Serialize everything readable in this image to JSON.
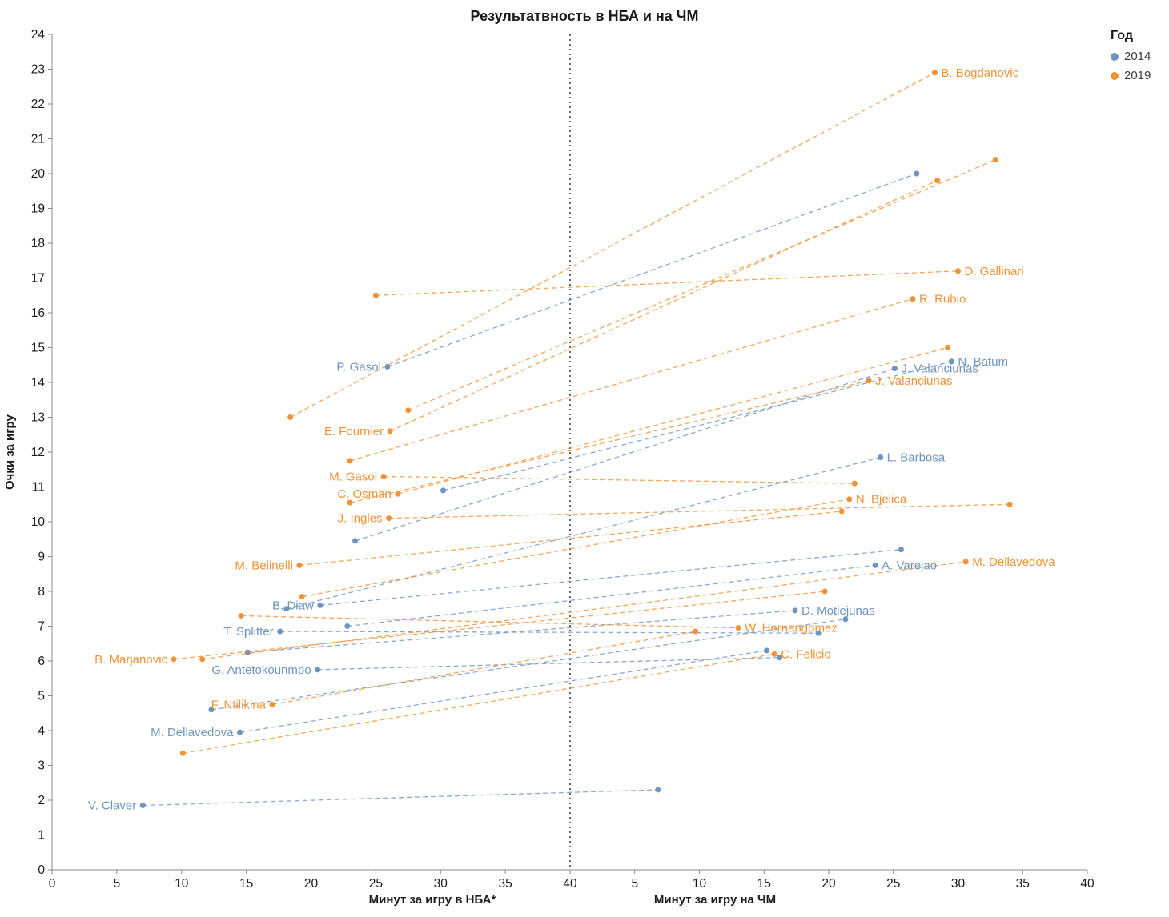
{
  "title": "Результатвность в НБА и на ЧМ",
  "legend": {
    "title": "Год",
    "items": [
      {
        "label": "2014",
        "color": "#6e94c1"
      },
      {
        "label": "2019",
        "color": "#f09235"
      }
    ]
  },
  "chart_data": {
    "type": "scatter",
    "variant": "dumbbell-slopegraph",
    "title": "Результатвность в НБА и на ЧМ",
    "ylabel": "Очки за игру",
    "xlabel_left": "Минут за игру в НБА*",
    "xlabel_right": "Минут за игру на ЧМ",
    "ylim": [
      0,
      24
    ],
    "y_ticks": [
      0,
      1,
      2,
      3,
      4,
      5,
      6,
      7,
      8,
      9,
      10,
      11,
      12,
      13,
      14,
      15,
      16,
      17,
      18,
      19,
      20,
      21,
      22,
      23,
      24
    ],
    "xlim_left": [
      0,
      40
    ],
    "xlim_right": [
      0,
      40
    ],
    "x_ticks_left": [
      0,
      5,
      10,
      15,
      20,
      25,
      30,
      35,
      40
    ],
    "x_ticks_right": [
      5,
      10,
      15,
      20,
      25,
      30,
      35,
      40
    ],
    "divider_x": 40,
    "grid": false,
    "legend_position": "top-right",
    "colors": {
      "axis": "#888888",
      "tick_text": "#1a1a1a",
      "divider": "#333333"
    },
    "series": [
      {
        "name": "2014",
        "color": "#6e94c1",
        "players": [
          {
            "name": "P. Gasol",
            "nba": [
              25.9,
              14.45
            ],
            "wc": [
              26.8,
              20.0
            ],
            "label_side": "nba"
          },
          {
            "name": "N. Batum",
            "nba": [
              30.2,
              10.9
            ],
            "wc": [
              29.5,
              14.6
            ],
            "label_side": "wc"
          },
          {
            "name": "J. Valanciunas",
            "nba": [
              23.4,
              9.45
            ],
            "wc": [
              25.1,
              14.4
            ],
            "label_side": "wc"
          },
          {
            "name": "L. Barbosa",
            "nba": [
              18.1,
              7.5
            ],
            "wc": [
              24.0,
              11.85
            ],
            "label_side": "wc"
          },
          {
            "name": "A. Varejao",
            "nba": [
              22.8,
              7.0
            ],
            "wc": [
              23.6,
              8.75
            ],
            "label_side": "wc"
          },
          {
            "name": "B. Diaw",
            "nba": [
              20.7,
              7.6
            ],
            "wc": [
              25.6,
              9.2
            ],
            "label_side": "nba"
          },
          {
            "name": "T. Splitter",
            "nba": [
              17.6,
              6.85
            ],
            "wc": [
              19.2,
              6.8
            ],
            "label_side": "nba"
          },
          {
            "name": "D. Motiejunas",
            "nba": [
              15.1,
              6.25
            ],
            "wc": [
              17.4,
              7.45
            ],
            "label_side": "wc"
          },
          {
            "name": "G. Antetokounmpo",
            "nba": [
              20.5,
              5.75
            ],
            "wc": [
              16.2,
              6.1
            ],
            "label_side": "nba"
          },
          {
            "name": "M. Dellavedova",
            "nba": [
              14.5,
              3.95
            ],
            "wc": [
              15.2,
              6.3
            ],
            "label_side": "nba"
          },
          {
            "name": "",
            "nba": [
              12.3,
              4.6
            ],
            "wc": [
              21.3,
              7.2
            ],
            "label_side": null
          },
          {
            "name": "V. Claver",
            "nba": [
              7.0,
              1.85
            ],
            "wc": [
              6.8,
              2.3
            ],
            "label_side": "nba"
          }
        ]
      },
      {
        "name": "2019",
        "color": "#f09235",
        "players": [
          {
            "name": "B. Bogdanovic",
            "nba": [
              18.4,
              13.0
            ],
            "wc": [
              28.2,
              22.9
            ],
            "label_side": "wc"
          },
          {
            "name": "D. Gallinari",
            "nba": [
              25.0,
              16.5
            ],
            "wc": [
              30.0,
              17.2
            ],
            "label_side": "wc"
          },
          {
            "name": "R. Rubio",
            "nba": [
              23.0,
              11.75
            ],
            "wc": [
              26.5,
              16.4
            ],
            "label_side": "wc"
          },
          {
            "name": "E. Fournier",
            "nba": [
              26.1,
              12.6
            ],
            "wc": [
              28.4,
              19.8
            ],
            "label_side": "nba"
          },
          {
            "name": "",
            "nba": [
              27.5,
              13.2
            ],
            "wc": [
              32.9,
              20.4
            ],
            "label_side": null
          },
          {
            "name": "J. Valanciunas",
            "nba": [
              23.0,
              10.55
            ],
            "wc": [
              23.1,
              14.05
            ],
            "label_side": "wc"
          },
          {
            "name": "C. Osman",
            "nba": [
              26.7,
              10.8
            ],
            "wc": [
              29.2,
              15.0
            ],
            "label_side": "nba"
          },
          {
            "name": "J. Ingles",
            "nba": [
              26.0,
              10.1
            ],
            "wc": [
              34.0,
              10.5
            ],
            "label_side": "nba"
          },
          {
            "name": "N. Bjelica",
            "nba": [
              19.3,
              7.85
            ],
            "wc": [
              21.6,
              10.65
            ],
            "label_side": "wc"
          },
          {
            "name": "M. Belinelli",
            "nba": [
              19.1,
              8.75
            ],
            "wc": [
              21.0,
              10.3
            ],
            "label_side": "nba"
          },
          {
            "name": "M. Dellavedova",
            "nba": [
              11.6,
              6.05
            ],
            "wc": [
              30.6,
              8.85
            ],
            "label_side": "wc"
          },
          {
            "name": "W. Hernangomez",
            "nba": [
              14.6,
              7.3
            ],
            "wc": [
              13.0,
              6.95
            ],
            "label_side": "wc"
          },
          {
            "name": "B. Marjanovic",
            "nba": [
              9.4,
              6.05
            ],
            "wc": [
              19.7,
              8.0
            ],
            "label_side": "nba"
          },
          {
            "name": "F. Ntilikina",
            "nba": [
              17.0,
              4.75
            ],
            "wc": [
              9.7,
              6.85
            ],
            "label_side": "nba"
          },
          {
            "name": "C. Felicio",
            "nba": [
              10.1,
              3.35
            ],
            "wc": [
              15.8,
              6.2
            ],
            "label_side": "wc"
          },
          {
            "name": "M. Gasol",
            "nba": [
              25.6,
              11.3
            ],
            "wc": [
              22.0,
              11.1
            ],
            "label_side": "nba"
          }
        ]
      }
    ]
  }
}
